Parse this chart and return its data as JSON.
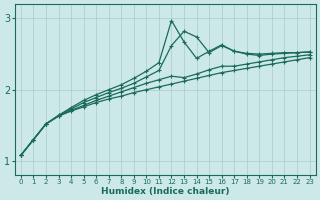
{
  "xlabel": "Humidex (Indice chaleur)",
  "background_color": "#cce8e8",
  "grid_color": "#aacccc",
  "line_color": "#1a6b5a",
  "x_values": [
    0,
    1,
    2,
    3,
    4,
    5,
    6,
    7,
    8,
    9,
    10,
    11,
    12,
    13,
    14,
    15,
    16,
    17,
    18,
    19,
    20,
    21,
    22,
    23
  ],
  "series": [
    [
      1.08,
      1.3,
      1.52,
      1.63,
      1.7,
      1.76,
      1.82,
      1.87,
      1.91,
      1.96,
      2.0,
      2.04,
      2.08,
      2.12,
      2.16,
      2.2,
      2.24,
      2.27,
      2.3,
      2.33,
      2.36,
      2.39,
      2.42,
      2.45
    ],
    [
      1.08,
      1.3,
      1.52,
      1.63,
      1.71,
      1.78,
      1.85,
      1.91,
      1.97,
      2.03,
      2.09,
      2.14,
      2.19,
      2.17,
      2.22,
      2.28,
      2.33,
      2.33,
      2.36,
      2.39,
      2.42,
      2.45,
      2.47,
      2.49
    ],
    [
      1.08,
      1.3,
      1.52,
      1.64,
      1.73,
      1.82,
      1.89,
      1.96,
      2.02,
      2.09,
      2.18,
      2.27,
      2.62,
      2.82,
      2.74,
      2.52,
      2.62,
      2.54,
      2.5,
      2.48,
      2.5,
      2.51,
      2.52,
      2.53
    ],
    [
      1.08,
      1.3,
      1.52,
      1.64,
      1.75,
      1.85,
      1.93,
      2.0,
      2.07,
      2.16,
      2.26,
      2.38,
      2.97,
      2.67,
      2.44,
      2.54,
      2.63,
      2.54,
      2.51,
      2.5,
      2.51,
      2.52,
      2.52,
      2.53
    ]
  ],
  "ylim": [
    0.8,
    3.2
  ],
  "xlim": [
    -0.5,
    23.5
  ],
  "yticks": [
    1,
    2,
    3
  ],
  "xticks": [
    0,
    1,
    2,
    3,
    4,
    5,
    6,
    7,
    8,
    9,
    10,
    11,
    12,
    13,
    14,
    15,
    16,
    17,
    18,
    19,
    20,
    21,
    22,
    23
  ],
  "marker": "+",
  "markersize": 3.5,
  "linewidth": 0.9
}
